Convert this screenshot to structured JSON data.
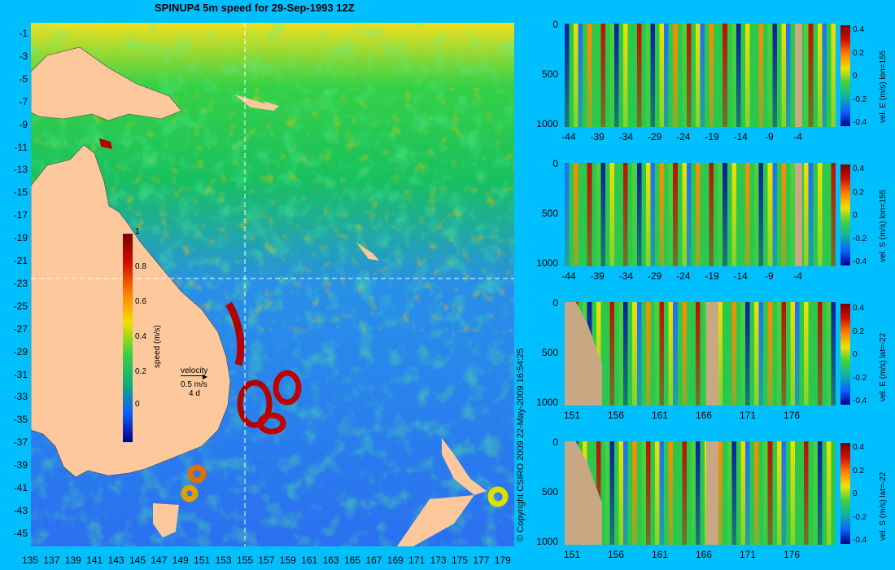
{
  "title": "SPINUP4 5m speed for 29-Sep-1993 12Z",
  "map": {
    "y_ticks": [
      "-1",
      "-3",
      "-5",
      "-7",
      "-9",
      "-11",
      "-13",
      "-15",
      "-17",
      "-19",
      "-21",
      "-23",
      "-25",
      "-27",
      "-29",
      "-31",
      "-33",
      "-35",
      "-37",
      "-39",
      "-41",
      "-43",
      "-45"
    ],
    "x_ticks": [
      "135",
      "137",
      "139",
      "141",
      "143",
      "145",
      "147",
      "149",
      "151",
      "153",
      "155",
      "157",
      "159",
      "161",
      "163",
      "165",
      "167",
      "169",
      "171",
      "173",
      "175",
      "177",
      "179"
    ],
    "colorbar": {
      "label": "speed (m/s)",
      "ticks": [
        "1",
        "0.8",
        "0.6",
        "0.4",
        "0.2",
        "0"
      ]
    },
    "velocity_legend": {
      "title": "velocity",
      "speed": "0.5 m/s",
      "duration": "4 d"
    },
    "section_lines": {
      "lon": 155,
      "lat": -22
    },
    "colors": {
      "land": "#fcc89c",
      "ocean_low": "#1e64ff",
      "ocean_mid": "#14c85a",
      "ocean_high": "#b40000"
    }
  },
  "copyright": "© Copyright CSIRO 2009   22-May-2009 16:54:25",
  "sections": [
    {
      "y_ticks": [
        "0",
        "500",
        "1000"
      ],
      "x_ticks": [
        "-44",
        "-39",
        "-34",
        "-29",
        "-24",
        "-19",
        "-14",
        "-9",
        "-4"
      ],
      "cbar_ticks": [
        "0.4",
        "0.2",
        "0",
        "-0.2",
        "-0.4"
      ],
      "label": "vel. E (m/s) lon=155"
    },
    {
      "y_ticks": [
        "0",
        "500",
        "1000"
      ],
      "x_ticks": [
        "-44",
        "-39",
        "-34",
        "-29",
        "-24",
        "-19",
        "-14",
        "-9",
        "-4"
      ],
      "cbar_ticks": [
        "0.4",
        "0.2",
        "0",
        "-0.2",
        "-0.4"
      ],
      "label": "vel. S (m/s) lon=155"
    },
    {
      "y_ticks": [
        "0",
        "500",
        "1000"
      ],
      "x_ticks": [
        "151",
        "156",
        "161",
        "166",
        "171",
        "176"
      ],
      "cbar_ticks": [
        "0.4",
        "0.2",
        "0",
        "-0.2",
        "-0.4"
      ],
      "label": "vel. E (m/s) lat=-22"
    },
    {
      "y_ticks": [
        "0",
        "500",
        "1000"
      ],
      "x_ticks": [
        "151",
        "156",
        "161",
        "166",
        "171",
        "176"
      ],
      "cbar_ticks": [
        "0.4",
        "0.2",
        "0",
        "-0.2",
        "-0.4"
      ],
      "label": "vel. S (m/s) lat=-22"
    }
  ]
}
